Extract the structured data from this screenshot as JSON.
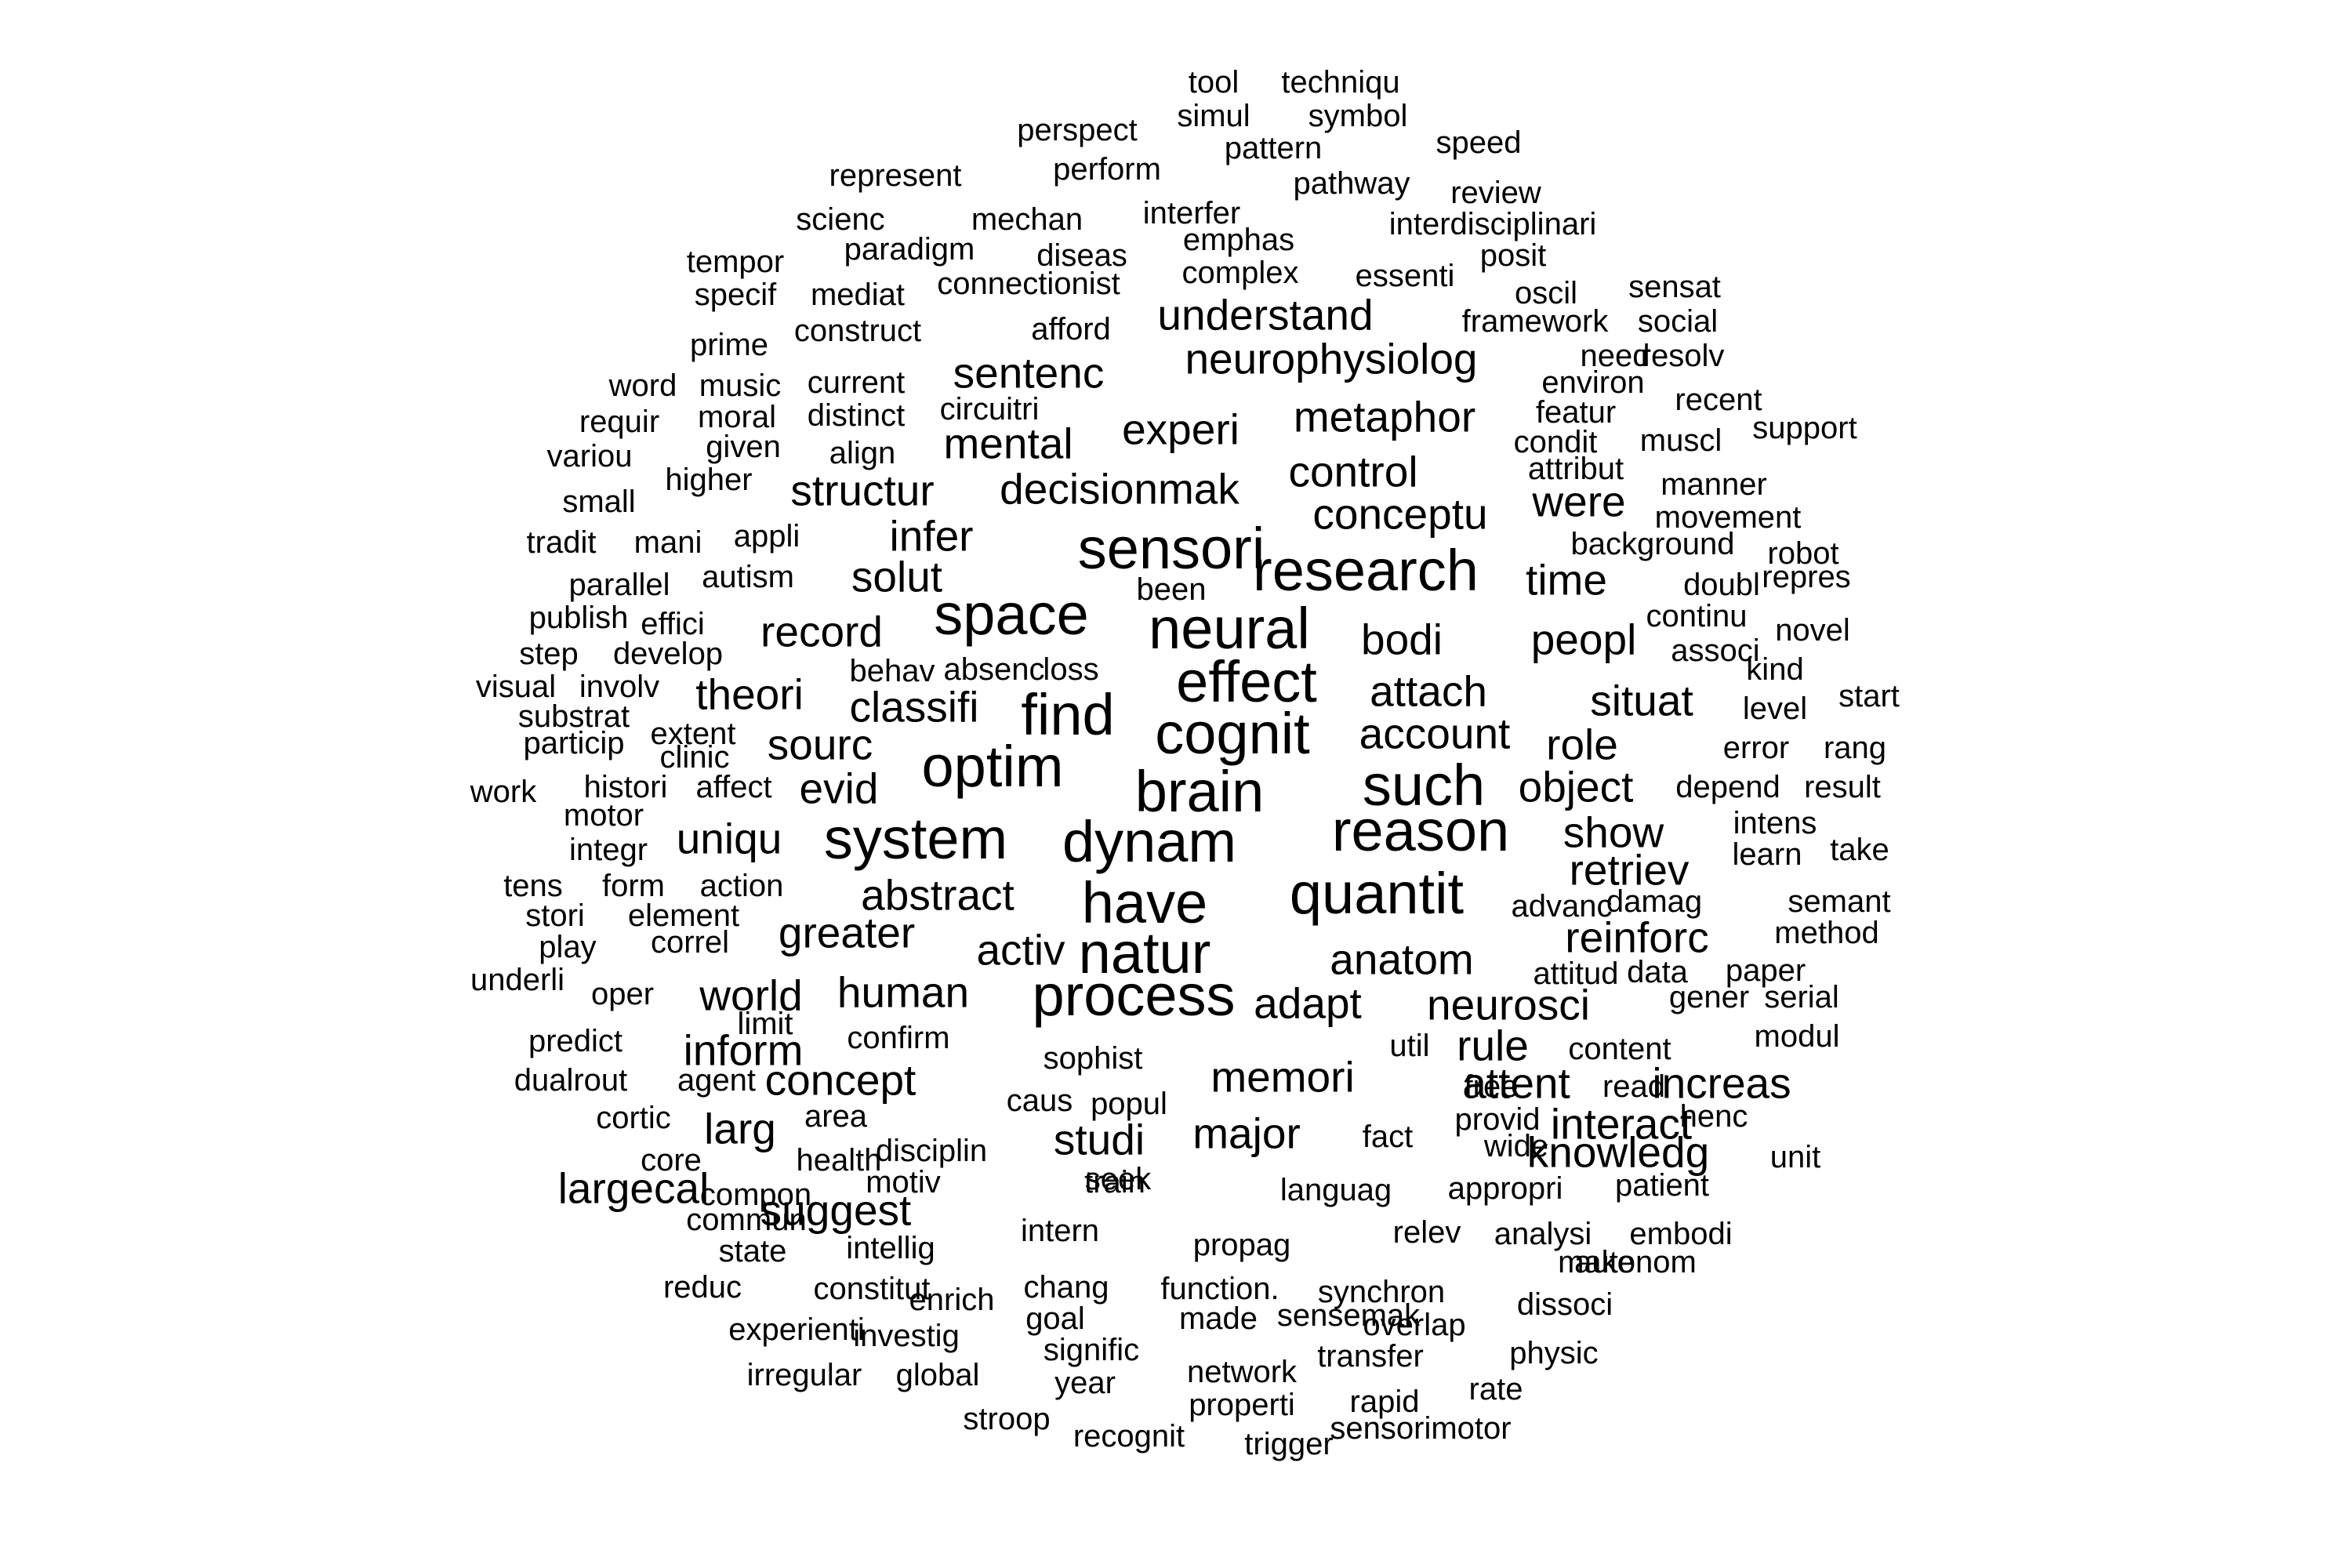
{
  "word_cloud": {
    "text_color": "#000000",
    "background_color": "#ffffff",
    "words": [
      {
        "text": "tool",
        "weight": 1
      },
      {
        "text": "techniqu",
        "weight": 1
      },
      {
        "text": "perspect",
        "weight": 1
      },
      {
        "text": "simul",
        "weight": 1
      },
      {
        "text": "symbol",
        "weight": 1
      },
      {
        "text": "pattern",
        "weight": 1
      },
      {
        "text": "speed",
        "weight": 1
      },
      {
        "text": "represent",
        "weight": 1
      },
      {
        "text": "perform",
        "weight": 1
      },
      {
        "text": "pathway",
        "weight": 1
      },
      {
        "text": "review",
        "weight": 1
      },
      {
        "text": "scienc",
        "weight": 1
      },
      {
        "text": "mechan",
        "weight": 1
      },
      {
        "text": "interfer",
        "weight": 1
      },
      {
        "text": "interdisciplinari",
        "weight": 1
      },
      {
        "text": "emphas",
        "weight": 1
      },
      {
        "text": "tempor",
        "weight": 1
      },
      {
        "text": "paradigm",
        "weight": 1
      },
      {
        "text": "diseas",
        "weight": 1
      },
      {
        "text": "posit",
        "weight": 1
      },
      {
        "text": "complex",
        "weight": 1
      },
      {
        "text": "essenti",
        "weight": 1
      },
      {
        "text": "specif",
        "weight": 1
      },
      {
        "text": "mediat",
        "weight": 1
      },
      {
        "text": "connectionist",
        "weight": 1
      },
      {
        "text": "oscil",
        "weight": 1
      },
      {
        "text": "sensat",
        "weight": 1
      },
      {
        "text": "understand",
        "weight": 2
      },
      {
        "text": "framework",
        "weight": 1
      },
      {
        "text": "social",
        "weight": 1
      },
      {
        "text": "prime",
        "weight": 1
      },
      {
        "text": "construct",
        "weight": 1
      },
      {
        "text": "afford",
        "weight": 1
      },
      {
        "text": "need",
        "weight": 1
      },
      {
        "text": "resolv",
        "weight": 1
      },
      {
        "text": "neurophysiolog",
        "weight": 2
      },
      {
        "text": "word",
        "weight": 1
      },
      {
        "text": "music",
        "weight": 1
      },
      {
        "text": "current",
        "weight": 1
      },
      {
        "text": "sentenc",
        "weight": 2
      },
      {
        "text": "environ",
        "weight": 1
      },
      {
        "text": "recent",
        "weight": 1
      },
      {
        "text": "requir",
        "weight": 1
      },
      {
        "text": "moral",
        "weight": 1
      },
      {
        "text": "distinct",
        "weight": 1
      },
      {
        "text": "circuitri",
        "weight": 1
      },
      {
        "text": "featur",
        "weight": 1
      },
      {
        "text": "metaphor",
        "weight": 2
      },
      {
        "text": "support",
        "weight": 1
      },
      {
        "text": "experi",
        "weight": 2
      },
      {
        "text": "condit",
        "weight": 1
      },
      {
        "text": "muscl",
        "weight": 1
      },
      {
        "text": "variou",
        "weight": 1
      },
      {
        "text": "given",
        "weight": 1
      },
      {
        "text": "align",
        "weight": 1
      },
      {
        "text": "mental",
        "weight": 2
      },
      {
        "text": "attribut",
        "weight": 1
      },
      {
        "text": "control",
        "weight": 2
      },
      {
        "text": "higher",
        "weight": 1
      },
      {
        "text": "manner",
        "weight": 1
      },
      {
        "text": "small",
        "weight": 1
      },
      {
        "text": "structur",
        "weight": 2
      },
      {
        "text": "decisionmak",
        "weight": 2
      },
      {
        "text": "were",
        "weight": 2
      },
      {
        "text": "conceptu",
        "weight": 2
      },
      {
        "text": "movement",
        "weight": 1
      },
      {
        "text": "tradit",
        "weight": 1
      },
      {
        "text": "mani",
        "weight": 1
      },
      {
        "text": "appli",
        "weight": 1
      },
      {
        "text": "infer",
        "weight": 2
      },
      {
        "text": "background",
        "weight": 1
      },
      {
        "text": "robot",
        "weight": 1
      },
      {
        "text": "sensori",
        "weight": 3
      },
      {
        "text": "research",
        "weight": 3
      },
      {
        "text": "autism",
        "weight": 1
      },
      {
        "text": "solut",
        "weight": 2
      },
      {
        "text": "time",
        "weight": 2
      },
      {
        "text": "repres",
        "weight": 1
      },
      {
        "text": "parallel",
        "weight": 1
      },
      {
        "text": "been",
        "weight": 1
      },
      {
        "text": "doubl",
        "weight": 1
      },
      {
        "text": "space",
        "weight": 3
      },
      {
        "text": "publish",
        "weight": 1
      },
      {
        "text": "effici",
        "weight": 1
      },
      {
        "text": "continu",
        "weight": 1
      },
      {
        "text": "novel",
        "weight": 1
      },
      {
        "text": "neural",
        "weight": 3
      },
      {
        "text": "record",
        "weight": 2
      },
      {
        "text": "bodi",
        "weight": 2
      },
      {
        "text": "peopl",
        "weight": 2
      },
      {
        "text": "step",
        "weight": 1
      },
      {
        "text": "develop",
        "weight": 1
      },
      {
        "text": "associ",
        "weight": 1
      },
      {
        "text": "behav",
        "weight": 1
      },
      {
        "text": "absenc",
        "weight": 1
      },
      {
        "text": "loss",
        "weight": 1
      },
      {
        "text": "kind",
        "weight": 1
      },
      {
        "text": "effect",
        "weight": 3
      },
      {
        "text": "visual",
        "weight": 1
      },
      {
        "text": "involv",
        "weight": 1
      },
      {
        "text": "theori",
        "weight": 2
      },
      {
        "text": "attach",
        "weight": 2
      },
      {
        "text": "start",
        "weight": 1
      },
      {
        "text": "substrat",
        "weight": 1
      },
      {
        "text": "classifi",
        "weight": 2
      },
      {
        "text": "situat",
        "weight": 2
      },
      {
        "text": "level",
        "weight": 1
      },
      {
        "text": "find",
        "weight": 3
      },
      {
        "text": "extent",
        "weight": 1
      },
      {
        "text": "cognit",
        "weight": 3
      },
      {
        "text": "particip",
        "weight": 1
      },
      {
        "text": "account",
        "weight": 2
      },
      {
        "text": "clinic",
        "weight": 1
      },
      {
        "text": "sourc",
        "weight": 2
      },
      {
        "text": "role",
        "weight": 2
      },
      {
        "text": "error",
        "weight": 1
      },
      {
        "text": "rang",
        "weight": 1
      },
      {
        "text": "optim",
        "weight": 3
      },
      {
        "text": "such",
        "weight": 3
      },
      {
        "text": "work",
        "weight": 1
      },
      {
        "text": "histori",
        "weight": 1
      },
      {
        "text": "affect",
        "weight": 1
      },
      {
        "text": "evid",
        "weight": 2
      },
      {
        "text": "brain",
        "weight": 3
      },
      {
        "text": "object",
        "weight": 2
      },
      {
        "text": "depend",
        "weight": 1
      },
      {
        "text": "result",
        "weight": 1
      },
      {
        "text": "motor",
        "weight": 1
      },
      {
        "text": "intens",
        "weight": 1
      },
      {
        "text": "reason",
        "weight": 3
      },
      {
        "text": "uniqu",
        "weight": 2
      },
      {
        "text": "system",
        "weight": 3
      },
      {
        "text": "dynam",
        "weight": 3
      },
      {
        "text": "show",
        "weight": 2
      },
      {
        "text": "integr",
        "weight": 1
      },
      {
        "text": "learn",
        "weight": 1
      },
      {
        "text": "take",
        "weight": 1
      },
      {
        "text": "retriev",
        "weight": 2
      },
      {
        "text": "tens",
        "weight": 1
      },
      {
        "text": "form",
        "weight": 1
      },
      {
        "text": "action",
        "weight": 1
      },
      {
        "text": "quantit",
        "weight": 3
      },
      {
        "text": "abstract",
        "weight": 2
      },
      {
        "text": "have",
        "weight": 3
      },
      {
        "text": "advanc",
        "weight": 1
      },
      {
        "text": "damag",
        "weight": 1
      },
      {
        "text": "semant",
        "weight": 1
      },
      {
        "text": "stori",
        "weight": 1
      },
      {
        "text": "element",
        "weight": 1
      },
      {
        "text": "reinforc",
        "weight": 2
      },
      {
        "text": "greater",
        "weight": 2
      },
      {
        "text": "method",
        "weight": 1
      },
      {
        "text": "play",
        "weight": 1
      },
      {
        "text": "correl",
        "weight": 1
      },
      {
        "text": "activ",
        "weight": 2
      },
      {
        "text": "natur",
        "weight": 3
      },
      {
        "text": "anatom",
        "weight": 2
      },
      {
        "text": "paper",
        "weight": 1
      },
      {
        "text": "attitud",
        "weight": 1
      },
      {
        "text": "data",
        "weight": 1
      },
      {
        "text": "underli",
        "weight": 1
      },
      {
        "text": "oper",
        "weight": 1
      },
      {
        "text": "world",
        "weight": 2
      },
      {
        "text": "human",
        "weight": 2
      },
      {
        "text": "process",
        "weight": 3
      },
      {
        "text": "adapt",
        "weight": 2
      },
      {
        "text": "neurosci",
        "weight": 2
      },
      {
        "text": "gener",
        "weight": 1
      },
      {
        "text": "serial",
        "weight": 1
      },
      {
        "text": "limit",
        "weight": 1
      },
      {
        "text": "modul",
        "weight": 1
      },
      {
        "text": "predict",
        "weight": 1
      },
      {
        "text": "inform",
        "weight": 2
      },
      {
        "text": "confirm",
        "weight": 1
      },
      {
        "text": "util",
        "weight": 1
      },
      {
        "text": "rule",
        "weight": 2
      },
      {
        "text": "content",
        "weight": 1
      },
      {
        "text": "attent",
        "weight": 2
      },
      {
        "text": "sophist",
        "weight": 1
      },
      {
        "text": "dualrout",
        "weight": 1
      },
      {
        "text": "agent",
        "weight": 1
      },
      {
        "text": "concept",
        "weight": 2
      },
      {
        "text": "memori",
        "weight": 2
      },
      {
        "text": "free",
        "weight": 1
      },
      {
        "text": "read",
        "weight": 1
      },
      {
        "text": "increas",
        "weight": 2
      },
      {
        "text": "caus",
        "weight": 1
      },
      {
        "text": "popul",
        "weight": 1
      },
      {
        "text": "cortic",
        "weight": 1
      },
      {
        "text": "area",
        "weight": 1
      },
      {
        "text": "provid",
        "weight": 1
      },
      {
        "text": "henc",
        "weight": 1
      },
      {
        "text": "larg",
        "weight": 2
      },
      {
        "text": "major",
        "weight": 2
      },
      {
        "text": "fact",
        "weight": 1
      },
      {
        "text": "interact",
        "weight": 2
      },
      {
        "text": "studi",
        "weight": 2
      },
      {
        "text": "seek",
        "weight": 1
      },
      {
        "text": "disciplin",
        "weight": 1
      },
      {
        "text": "core",
        "weight": 1
      },
      {
        "text": "health",
        "weight": 1
      },
      {
        "text": "wide",
        "weight": 1
      },
      {
        "text": "knowledg",
        "weight": 2
      },
      {
        "text": "unit",
        "weight": 1
      },
      {
        "text": "train",
        "weight": 1
      },
      {
        "text": "motiv",
        "weight": 1
      },
      {
        "text": "largecal",
        "weight": 2
      },
      {
        "text": "compon",
        "weight": 1
      },
      {
        "text": "languag",
        "weight": 1
      },
      {
        "text": "appropri",
        "weight": 1
      },
      {
        "text": "patient",
        "weight": 1
      },
      {
        "text": "suggest",
        "weight": 2
      },
      {
        "text": "commun",
        "weight": 1
      },
      {
        "text": "intern",
        "weight": 1
      },
      {
        "text": "relev",
        "weight": 1
      },
      {
        "text": "analysi",
        "weight": 1
      },
      {
        "text": "embodi",
        "weight": 1
      },
      {
        "text": "propag",
        "weight": 1
      },
      {
        "text": "intellig",
        "weight": 1
      },
      {
        "text": "state",
        "weight": 1
      },
      {
        "text": "make",
        "weight": 1
      },
      {
        "text": "autonom",
        "weight": 1
      },
      {
        "text": "constitut",
        "weight": 1
      },
      {
        "text": "chang",
        "weight": 1
      },
      {
        "text": "synchron",
        "weight": 1
      },
      {
        "text": "function.",
        "weight": 1
      },
      {
        "text": "reduc",
        "weight": 1
      },
      {
        "text": "enrich",
        "weight": 1
      },
      {
        "text": "dissoci",
        "weight": 1
      },
      {
        "text": "goal",
        "weight": 1
      },
      {
        "text": "made",
        "weight": 1
      },
      {
        "text": "sensemak",
        "weight": 1
      },
      {
        "text": "overlap",
        "weight": 1
      },
      {
        "text": "experienti",
        "weight": 1
      },
      {
        "text": "investig",
        "weight": 1
      },
      {
        "text": "signific",
        "weight": 1
      },
      {
        "text": "transfer",
        "weight": 1
      },
      {
        "text": "physic",
        "weight": 1
      },
      {
        "text": "irregular",
        "weight": 1
      },
      {
        "text": "global",
        "weight": 1
      },
      {
        "text": "year",
        "weight": 1
      },
      {
        "text": "network",
        "weight": 1
      },
      {
        "text": "rate",
        "weight": 1
      },
      {
        "text": "properti",
        "weight": 1
      },
      {
        "text": "rapid",
        "weight": 1
      },
      {
        "text": "stroop",
        "weight": 1
      },
      {
        "text": "recognit",
        "weight": 1
      },
      {
        "text": "sensorimotor",
        "weight": 1
      },
      {
        "text": "trigger",
        "weight": 1
      }
    ]
  }
}
